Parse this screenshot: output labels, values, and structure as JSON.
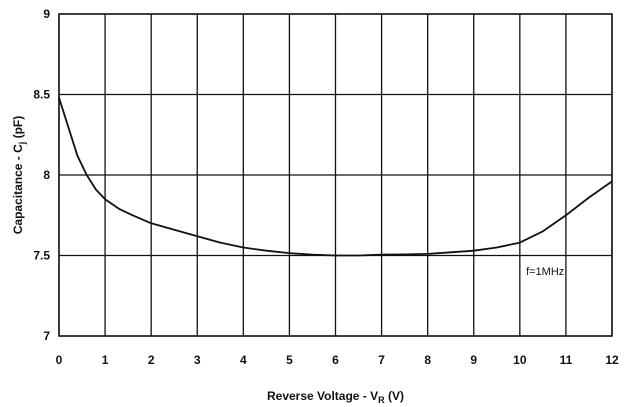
{
  "chart_data": {
    "type": "line",
    "title": "",
    "xlabel": {
      "main": "Reverse Voltage - V",
      "sub": "R",
      "unit": " (V)"
    },
    "ylabel": {
      "main": "Capacitance - C",
      "sub": "j",
      "unit": " (pF)"
    },
    "xlim": [
      0,
      12
    ],
    "ylim": [
      7,
      9
    ],
    "x_ticks": [
      "0",
      "1",
      "2",
      "3",
      "4",
      "5",
      "6",
      "7",
      "8",
      "9",
      "10",
      "11",
      "12"
    ],
    "y_ticks": [
      "7",
      "7.5",
      "8",
      "8.5",
      "9"
    ],
    "grid": true,
    "annotation": "f=1MHz",
    "series": [
      {
        "x": [
          0,
          0.2,
          0.4,
          0.6,
          0.8,
          1.0,
          1.3,
          1.6,
          2.0,
          2.5,
          3.0,
          3.5,
          4.0,
          4.5,
          5.0,
          5.5,
          6.0,
          6.5,
          7.0,
          7.5,
          8.0,
          8.5,
          9.0,
          9.5,
          10.0,
          10.5,
          11.0,
          11.5,
          12.0
        ],
        "y": [
          8.48,
          8.3,
          8.12,
          8.0,
          7.91,
          7.85,
          7.79,
          7.75,
          7.7,
          7.66,
          7.62,
          7.58,
          7.55,
          7.53,
          7.515,
          7.505,
          7.5,
          7.5,
          7.505,
          7.507,
          7.51,
          7.52,
          7.53,
          7.55,
          7.58,
          7.65,
          7.75,
          7.86,
          7.96
        ],
        "color": "#111111"
      }
    ]
  }
}
